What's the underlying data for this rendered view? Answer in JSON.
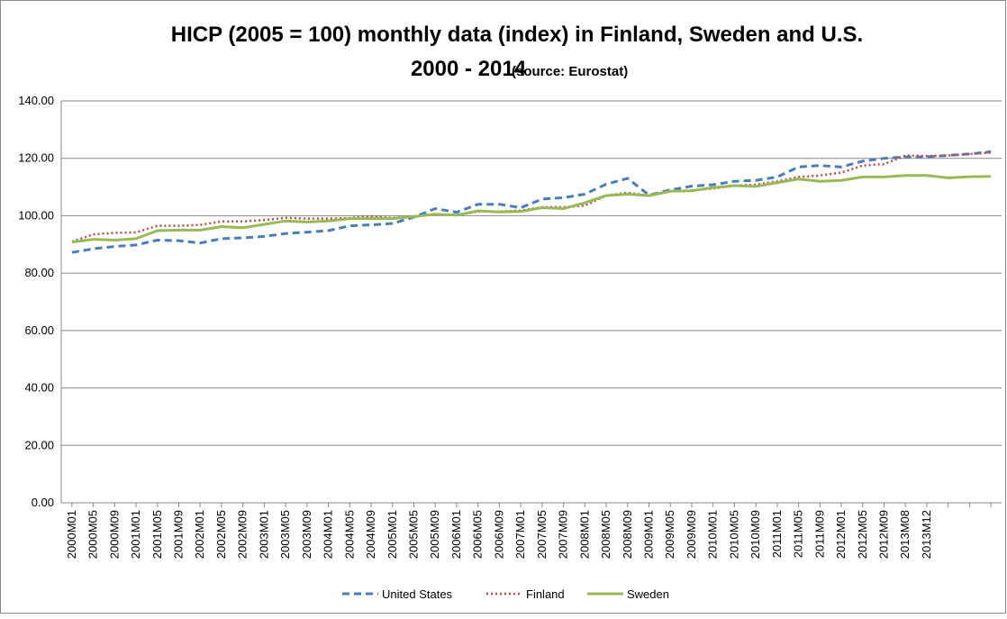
{
  "chart_data": {
    "type": "line",
    "title": "HICP (2005 = 100) monthly data (index) in Finland, Sweden and U.S.",
    "subtitle": "2000 - 2014",
    "source_note": "(source: Eurostat)",
    "categories": [
      "2000M01",
      "2000M05",
      "2000M09",
      "2001M01",
      "2001M05",
      "2001M09",
      "2002M01",
      "2002M05",
      "2002M09",
      "2003M01",
      "2003M05",
      "2003M09",
      "2004M01",
      "2004M05",
      "2004M09",
      "2005M01",
      "2005M05",
      "2005M09",
      "2006M01",
      "2006M05",
      "2006M09",
      "2007M01",
      "2007M05",
      "2007M09",
      "2008M01",
      "2008M05",
      "2008M09",
      "2009M01",
      "2009M05",
      "2009M09",
      "2010M01",
      "2010M05",
      "2010M09",
      "2011M01",
      "2011M05",
      "2011M09",
      "2012M01",
      "2012M05",
      "2012M09",
      "2013M08",
      "2013M12",
      null,
      null,
      null
    ],
    "series": [
      {
        "name": "United States",
        "color": "#4a7ebb",
        "dash": "8,5",
        "width": 3,
        "values": [
          87.2,
          88.5,
          89.3,
          89.8,
          91.5,
          91.3,
          90.5,
          92,
          92.3,
          92.8,
          93.8,
          94.3,
          94.8,
          96.5,
          96.8,
          97.3,
          99.5,
          102.5,
          101.2,
          104,
          104,
          102.8,
          105.8,
          106.3,
          107.5,
          111,
          113,
          107.2,
          109,
          110.3,
          110.8,
          112,
          112.3,
          113.5,
          117,
          117.5,
          117,
          119,
          120,
          120.5,
          120.5,
          121,
          121.5,
          122.3
        ]
      },
      {
        "name": "Finland",
        "color": "#be4b48",
        "dash": "2,3",
        "width": 2.5,
        "values": [
          91,
          93.5,
          94,
          94.2,
          96.5,
          96.5,
          96.8,
          98,
          98,
          98.5,
          99.3,
          99,
          99,
          99.2,
          99.8,
          99.2,
          99.8,
          100.5,
          100.2,
          101.5,
          101.5,
          101.8,
          103,
          103,
          103.5,
          107,
          108,
          107,
          108.5,
          108.8,
          109.5,
          110.5,
          110.8,
          112,
          113.5,
          114,
          115,
          117.5,
          118,
          121,
          120.8,
          121,
          121.5,
          122
        ]
      },
      {
        "name": "Sweden",
        "color": "#98b954",
        "dash": "",
        "width": 3,
        "values": [
          90.8,
          91.8,
          91.5,
          92,
          94.8,
          95,
          95,
          96.2,
          95.8,
          97,
          98.2,
          97.8,
          98.2,
          99,
          99,
          99,
          99.7,
          100.5,
          100.2,
          101.7,
          101.3,
          101.5,
          102.8,
          102.5,
          104.5,
          107,
          107.5,
          107,
          108.5,
          108.7,
          109.8,
          110.5,
          110.2,
          111.5,
          112.8,
          112,
          112.3,
          113.5,
          113.5,
          114,
          114,
          113.2,
          113.6,
          113.7
        ]
      }
    ],
    "ylim": [
      0,
      140
    ],
    "yticks": [
      {
        "value": 0,
        "label": "0.00"
      },
      {
        "value": 20,
        "label": "20.00"
      },
      {
        "value": 40,
        "label": "40.00"
      },
      {
        "value": 60,
        "label": "60.00"
      },
      {
        "value": 80,
        "label": "80.00"
      },
      {
        "value": 100,
        "label": "100.00"
      },
      {
        "value": 120,
        "label": "120.00"
      },
      {
        "value": 140,
        "label": "140.00"
      }
    ],
    "grid": true
  }
}
